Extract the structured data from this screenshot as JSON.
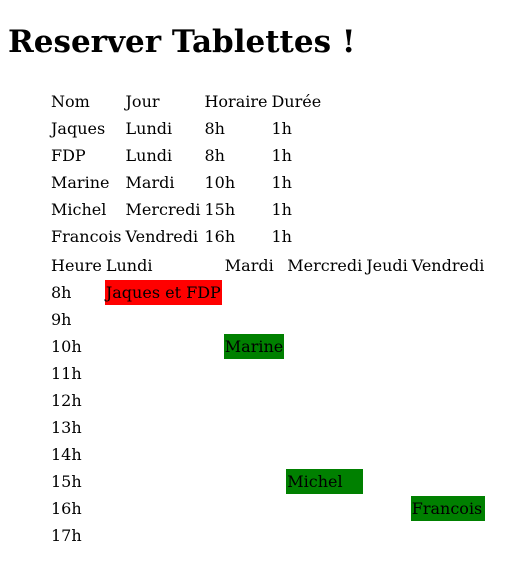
{
  "page": {
    "title": "Reserver Tablettes !"
  },
  "reservations": {
    "headers": [
      "Nom",
      "Jour",
      "Horaire",
      "Durée"
    ],
    "rows": [
      [
        "Jaques",
        "Lundi",
        "8h",
        "1h"
      ],
      [
        "FDP",
        "Lundi",
        "8h",
        "1h"
      ],
      [
        "Marine",
        "Mardi",
        "10h",
        "1h"
      ],
      [
        "Michel",
        "Mercredi",
        "15h",
        "1h"
      ],
      [
        "Francois",
        "Vendredi",
        "16h",
        "1h"
      ]
    ]
  },
  "schedule": {
    "headers": [
      "Heure",
      "Lundi",
      "Mardi",
      "Mercredi",
      "Jeudi",
      "Vendredi"
    ],
    "hours": [
      "8h",
      "9h",
      "10h",
      "11h",
      "12h",
      "13h",
      "14h",
      "15h",
      "16h",
      "17h"
    ],
    "bookings": [
      {
        "hour": "8h",
        "day": "Lundi",
        "label": "Jaques et FDP",
        "color": "#ff0000"
      },
      {
        "hour": "10h",
        "day": "Mardi",
        "label": "Marine",
        "color": "#008000"
      },
      {
        "hour": "15h",
        "day": "Mercredi",
        "label": "Michel",
        "color": "#008000"
      },
      {
        "hour": "16h",
        "day": "Vendredi",
        "label": "Francois",
        "color": "#008000"
      }
    ]
  }
}
